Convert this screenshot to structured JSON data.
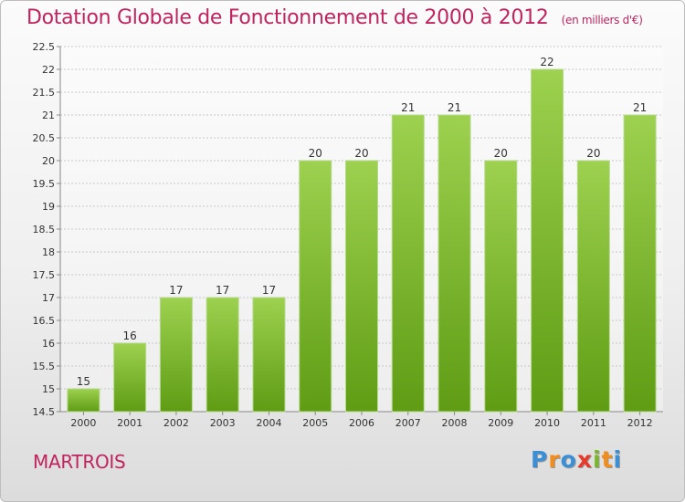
{
  "header": {
    "title": "Dotation Globale de Fonctionnement de 2000 à 2012",
    "unit": "(en milliers d'€)"
  },
  "footer": {
    "town": "MARTROIS",
    "logo": "Proxiti"
  },
  "colors": {
    "title": "#c0245f",
    "bar_light": "#9dd14f",
    "bar_dark": "#5f9c14",
    "logo_letters": [
      "#3a8fd6",
      "#f28c1b",
      "#3a8fd6",
      "#e8382a",
      "#7ab829",
      "#f28c1b",
      "#3a8fd6"
    ]
  },
  "chart_data": {
    "type": "bar",
    "categories": [
      "2000",
      "2001",
      "2002",
      "2003",
      "2004",
      "2005",
      "2006",
      "2007",
      "2008",
      "2009",
      "2010",
      "2011",
      "2012"
    ],
    "values": [
      15,
      16,
      17,
      17,
      17,
      20,
      20,
      21,
      21,
      20,
      22,
      20,
      21
    ],
    "value_labels": [
      "15",
      "16",
      "17",
      "17",
      "17",
      "20",
      "20",
      "21",
      "21",
      "20",
      "22",
      "20",
      "21"
    ],
    "ylim": [
      14.5,
      22.5
    ],
    "yticks": [
      "14.5",
      "15",
      "15.5",
      "16",
      "16.5",
      "17",
      "17.5",
      "18",
      "18.5",
      "19",
      "19.5",
      "20",
      "20.5",
      "21",
      "21.5",
      "22",
      "22.5"
    ],
    "grid": true
  }
}
